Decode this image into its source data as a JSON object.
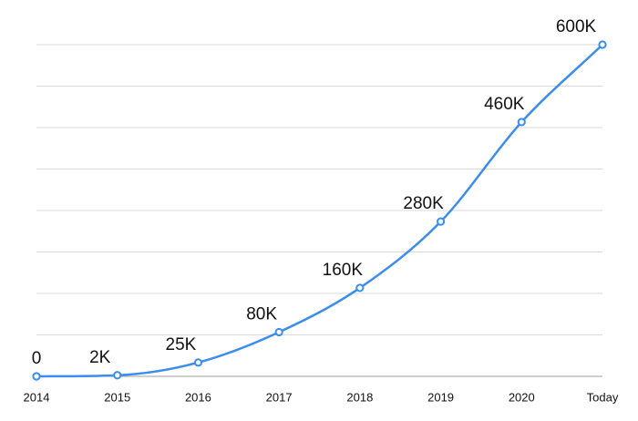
{
  "chart_data": {
    "type": "line",
    "title": "",
    "xlabel": "",
    "ylabel": "",
    "categories": [
      "2014",
      "2015",
      "2016",
      "2017",
      "2018",
      "2019",
      "2020",
      "Today"
    ],
    "series": [
      {
        "values": [
          0,
          2000,
          25000,
          80000,
          160000,
          280000,
          460000,
          600000
        ],
        "data_labels": [
          "0",
          "2K",
          "25K",
          "80K",
          "160K",
          "280K",
          "460K",
          "600K"
        ],
        "color": "#3b8ded"
      }
    ],
    "ylim": [
      0,
      600000
    ],
    "grid": true,
    "legend": "none"
  }
}
